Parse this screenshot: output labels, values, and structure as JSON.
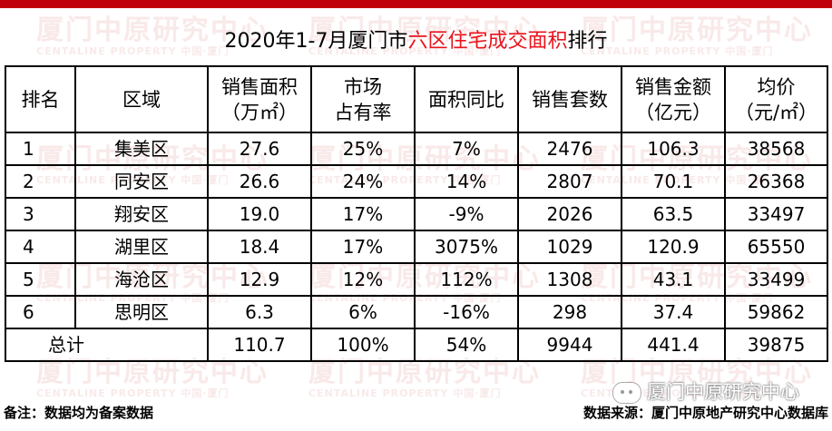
{
  "title": {
    "prefix": "2020年1-7月厦门市",
    "highlight": "六区住宅成交面积",
    "suffix": "排行"
  },
  "colors": {
    "accent_red": "#e8141c",
    "top_bar": "#c0000a"
  },
  "watermark": {
    "text": "厦门中原研究中心",
    "sub": "CENTALINE PROPERTY",
    "city": "中国·厦门"
  },
  "table": {
    "headers": [
      [
        "排名"
      ],
      [
        "区域"
      ],
      [
        "销售面积",
        "（万㎡）"
      ],
      [
        "市场",
        "占有率"
      ],
      [
        "面积同比"
      ],
      [
        "销售套数"
      ],
      [
        "销售金额",
        "（亿元）"
      ],
      [
        "均价",
        "（元/㎡）"
      ]
    ],
    "rows": [
      [
        "1",
        "集美区",
        "27.6",
        "25%",
        "7%",
        "2476",
        "106.3",
        "38568"
      ],
      [
        "2",
        "同安区",
        "26.6",
        "24%",
        "14%",
        "2807",
        "70.1",
        "26368"
      ],
      [
        "3",
        "翔安区",
        "19.0",
        "17%",
        "-9%",
        "2026",
        "63.5",
        "33497"
      ],
      [
        "4",
        "湖里区",
        "18.4",
        "17%",
        "3075%",
        "1029",
        "120.9",
        "65550"
      ],
      [
        "5",
        "海沧区",
        "12.9",
        "12%",
        "112%",
        "1308",
        "43.1",
        "33499"
      ],
      [
        "6",
        "思明区",
        "6.3",
        "6%",
        "-16%",
        "298",
        "37.4",
        "59862"
      ]
    ],
    "total": [
      "总计",
      "110.7",
      "100%",
      "54%",
      "9944",
      "441.4",
      "39875"
    ]
  },
  "footer": {
    "note": "备注：数据均为备案数据",
    "source": "数据来源：厦门中原地产研究中心数据库"
  },
  "brand": {
    "label": "厦门中原研究中心",
    "icon": "wechat-icon"
  }
}
